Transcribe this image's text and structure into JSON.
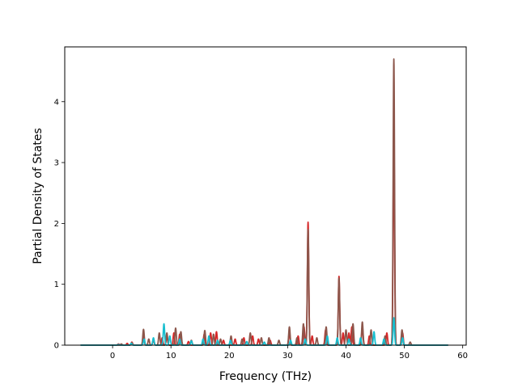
{
  "chart_data": {
    "type": "line",
    "title": "",
    "xlabel": "Frequency (THz)",
    "ylabel": "Partial Density of States",
    "xlim": [
      -8.2,
      60.6
    ],
    "ylim": [
      0,
      4.9
    ],
    "xticks": [
      0,
      10,
      20,
      30,
      40,
      50,
      60
    ],
    "yticks": [
      0,
      1,
      2,
      3,
      4
    ],
    "grid": false,
    "legend": "none",
    "sigma": 0.12,
    "series": [
      {
        "color": "#d62728",
        "x_range": [
          -5.5,
          57.5
        ],
        "peaks": [
          [
            1,
            0.02
          ],
          [
            2.5,
            0.03
          ],
          [
            3.3,
            0.05
          ],
          [
            5.3,
            0.18
          ],
          [
            7,
            0.1
          ],
          [
            8.5,
            0.12
          ],
          [
            9.3,
            0.15
          ],
          [
            10.5,
            0.2
          ],
          [
            11.5,
            0.18
          ],
          [
            13,
            0.06
          ],
          [
            15.7,
            0.18
          ],
          [
            16.8,
            0.2
          ],
          [
            17.8,
            0.22
          ],
          [
            19,
            0.08
          ],
          [
            21,
            0.1
          ],
          [
            22.5,
            0.12
          ],
          [
            24,
            0.15
          ],
          [
            25,
            0.1
          ],
          [
            27,
            0.08
          ],
          [
            30.3,
            0.22
          ],
          [
            31.8,
            0.15
          ],
          [
            32.8,
            0.3
          ],
          [
            33.5,
            2.02
          ],
          [
            34.2,
            0.15
          ],
          [
            36.5,
            0.25
          ],
          [
            38.8,
            1.13
          ],
          [
            39.5,
            0.2
          ],
          [
            40.5,
            0.2
          ],
          [
            41,
            0.3
          ],
          [
            42.8,
            0.3
          ],
          [
            44,
            0.15
          ],
          [
            47,
            0.2
          ],
          [
            48.2,
            3.5
          ],
          [
            49.7,
            0.2
          ]
        ]
      },
      {
        "color": "#8c564b",
        "x_range": [
          -5.5,
          57.5
        ],
        "peaks": [
          [
            1.5,
            0.02
          ],
          [
            3.3,
            0.04
          ],
          [
            5.3,
            0.26
          ],
          [
            6.2,
            0.1
          ],
          [
            7,
            0.1
          ],
          [
            8,
            0.2
          ],
          [
            9.3,
            0.2
          ],
          [
            10.8,
            0.28
          ],
          [
            11.7,
            0.22
          ],
          [
            13.5,
            0.08
          ],
          [
            15.8,
            0.24
          ],
          [
            17.3,
            0.18
          ],
          [
            18.5,
            0.1
          ],
          [
            20.3,
            0.15
          ],
          [
            22.2,
            0.1
          ],
          [
            23.6,
            0.2
          ],
          [
            25.5,
            0.12
          ],
          [
            26.8,
            0.12
          ],
          [
            28.5,
            0.08
          ],
          [
            30.3,
            0.3
          ],
          [
            31.6,
            0.12
          ],
          [
            32.7,
            0.35
          ],
          [
            33.5,
            1.9
          ],
          [
            35,
            0.12
          ],
          [
            36.6,
            0.3
          ],
          [
            38.8,
            1.1
          ],
          [
            40,
            0.25
          ],
          [
            41.2,
            0.35
          ],
          [
            42.8,
            0.38
          ],
          [
            44.3,
            0.25
          ],
          [
            46.7,
            0.15
          ],
          [
            48.2,
            4.7
          ],
          [
            49.6,
            0.25
          ],
          [
            51,
            0.05
          ]
        ]
      },
      {
        "color": "#17becf",
        "x_range": [
          -5.5,
          57.5
        ],
        "peaks": [
          [
            1,
            0.01
          ],
          [
            3.2,
            0.03
          ],
          [
            5.4,
            0.1
          ],
          [
            7,
            0.12
          ],
          [
            8.8,
            0.35
          ],
          [
            9.8,
            0.15
          ],
          [
            11.5,
            0.1
          ],
          [
            13.5,
            0.07
          ],
          [
            15.5,
            0.1
          ],
          [
            16.5,
            0.15
          ],
          [
            18,
            0.08
          ],
          [
            20.2,
            0.08
          ],
          [
            23,
            0.06
          ],
          [
            26,
            0.05
          ],
          [
            30.5,
            0.08
          ],
          [
            33,
            0.1
          ],
          [
            36.8,
            0.15
          ],
          [
            38.5,
            0.12
          ],
          [
            40.5,
            0.1
          ],
          [
            42.5,
            0.12
          ],
          [
            44.8,
            0.22
          ],
          [
            46.5,
            0.1
          ],
          [
            48.2,
            0.45
          ],
          [
            49.7,
            0.12
          ]
        ]
      }
    ]
  }
}
